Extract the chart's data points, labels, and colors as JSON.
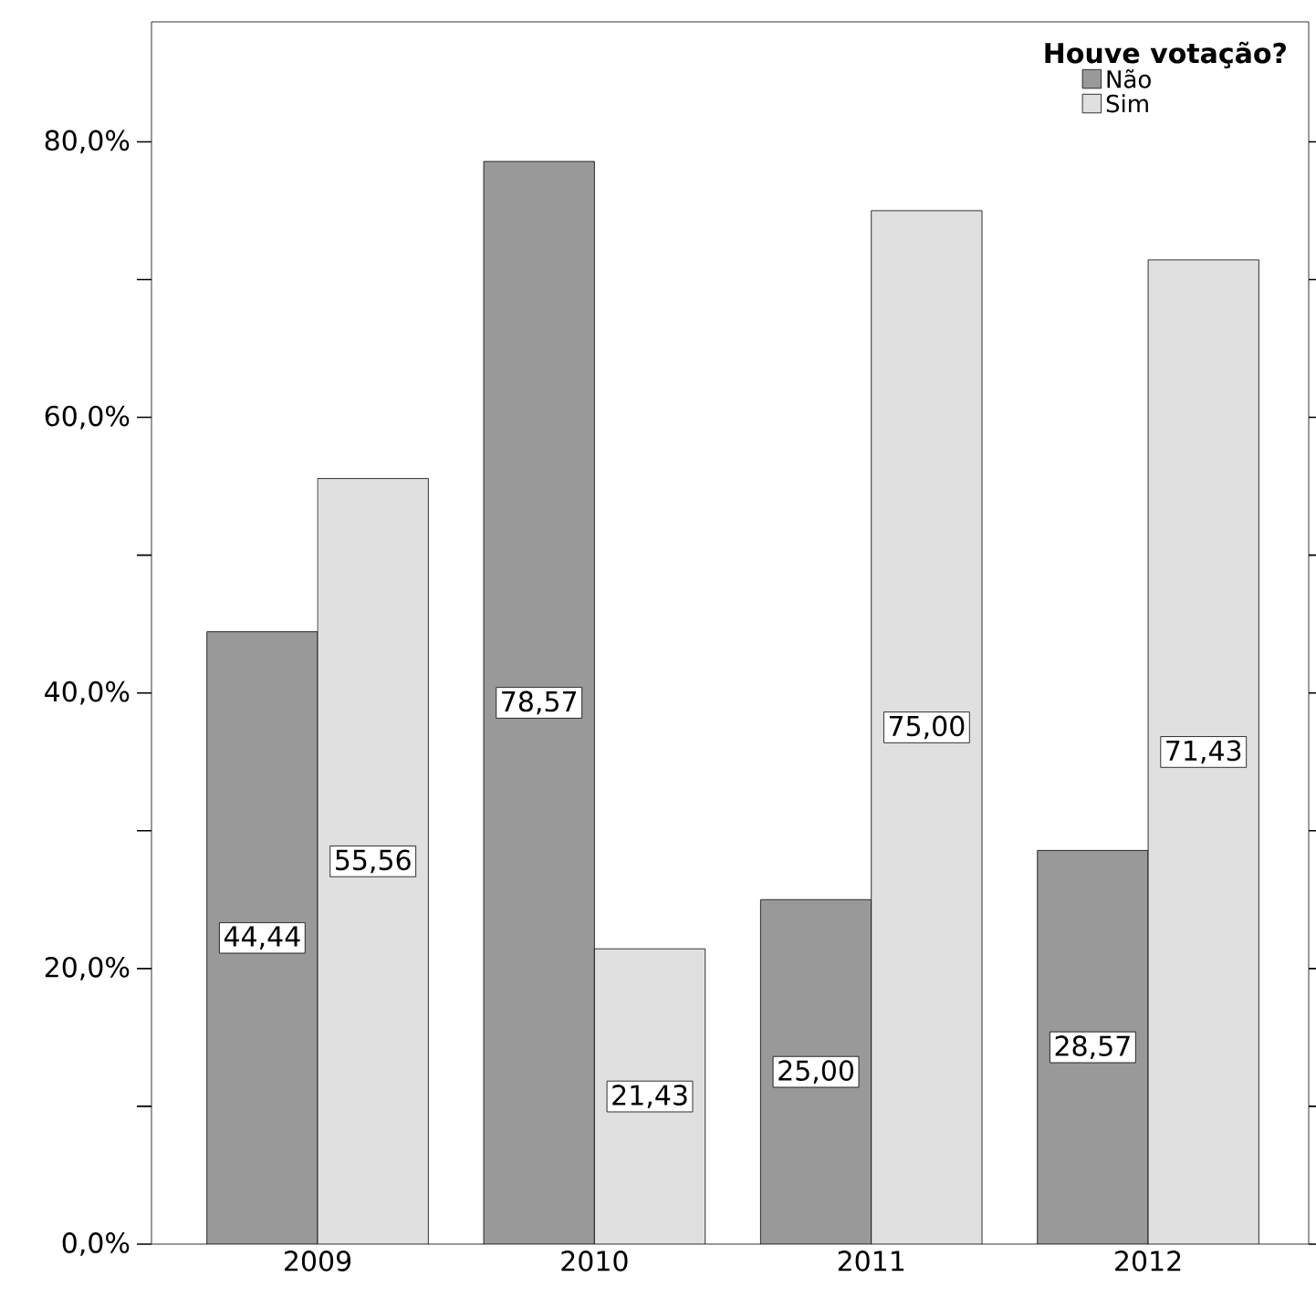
{
  "chart_data": {
    "type": "bar",
    "categories": [
      "2009",
      "2010",
      "2011",
      "2012"
    ],
    "legend_title": "Houve votação?",
    "series": [
      {
        "name": "Não",
        "color": "#999999",
        "values": [
          44.44,
          78.57,
          25.0,
          28.57
        ],
        "value_labels": [
          "44,44",
          "78,57",
          "25,00",
          "28,57"
        ]
      },
      {
        "name": "Sim",
        "color": "#e0e0e0",
        "values": [
          55.56,
          21.43,
          75.0,
          71.43
        ],
        "value_labels": [
          "55,56",
          "21,43",
          "75,00",
          "71,43"
        ]
      }
    ],
    "ylim": [
      0,
      88.7
    ],
    "yticks": [
      {
        "value": 0,
        "label": "0,0%"
      },
      {
        "value": 10,
        "label": null
      },
      {
        "value": 20,
        "label": "20,0%"
      },
      {
        "value": 30,
        "label": null
      },
      {
        "value": 40,
        "label": "40,0%"
      },
      {
        "value": 50,
        "label": null
      },
      {
        "value": 60,
        "label": "60,0%"
      },
      {
        "value": 70,
        "label": null
      },
      {
        "value": 80,
        "label": "80,0%"
      }
    ],
    "grid": false,
    "legend": "top right"
  }
}
